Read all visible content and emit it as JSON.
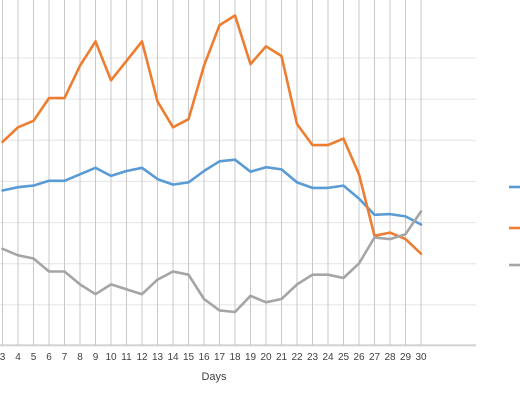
{
  "chart_data": {
    "type": "line",
    "xlabel": "Days",
    "ylabel": "",
    "title": "",
    "x": [
      3,
      4,
      5,
      6,
      7,
      8,
      9,
      10,
      11,
      12,
      13,
      14,
      15,
      16,
      17,
      18,
      19,
      20,
      21,
      22,
      23,
      24,
      25,
      26,
      27,
      28,
      29,
      30
    ],
    "ylim": [
      0,
      100
    ],
    "grid": "vertical",
    "legend": "right",
    "series": [
      {
        "color": "#5B9BD5",
        "values": [
          48,
          49,
          49.5,
          51,
          51,
          53,
          55,
          52.5,
          54,
          55,
          51.5,
          49.8,
          50.5,
          54,
          57,
          57.5,
          53.8,
          55.2,
          54.5,
          50.5,
          48.8,
          48.8,
          49.5,
          45.5,
          40.5,
          40.7,
          40,
          37.5
        ]
      },
      {
        "color": "#ED7D31",
        "values": [
          63,
          67.5,
          69.5,
          76.5,
          76.5,
          86.5,
          94,
          82,
          88,
          94,
          75.5,
          67.5,
          70,
          86.5,
          99,
          102,
          87,
          92.5,
          89.5,
          68.5,
          62,
          62,
          64,
          53,
          34,
          35,
          33,
          28.5
        ]
      },
      {
        "color": "#A5A5A5",
        "values": [
          30,
          28,
          27,
          23,
          23,
          19,
          16,
          19,
          17.5,
          16,
          20.5,
          23,
          22,
          14.5,
          11,
          10.5,
          15.5,
          13.5,
          14.5,
          19,
          22,
          22,
          21,
          25.5,
          33.5,
          33,
          34.5,
          41.5
        ]
      }
    ]
  }
}
